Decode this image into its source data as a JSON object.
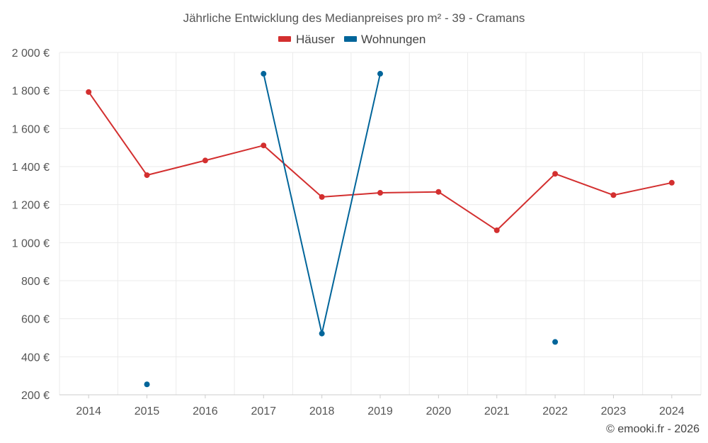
{
  "chart_data": {
    "type": "line",
    "title": "Jährliche Entwicklung des Medianpreises pro m² - 39 - Cramans",
    "categories": [
      "2014",
      "2015",
      "2016",
      "2017",
      "2018",
      "2019",
      "2020",
      "2021",
      "2022",
      "2023",
      "2024"
    ],
    "y_tick_labels": [
      "200 €",
      "400 €",
      "600 €",
      "800 €",
      "1 000 €",
      "1 200 €",
      "1 400 €",
      "1 600 €",
      "1 800 €",
      "2 000 €"
    ],
    "y_ticks": [
      200,
      400,
      600,
      800,
      1000,
      1200,
      1400,
      1600,
      1800,
      2000
    ],
    "ylim": [
      200,
      2000
    ],
    "grid": true,
    "legend_position": "top-center",
    "series": [
      {
        "name": "Häuser",
        "color": "#d32f2f",
        "values": [
          1792,
          1355,
          1432,
          1511,
          1240,
          1262,
          1267,
          1065,
          1362,
          1250,
          1315
        ]
      },
      {
        "name": "Wohnungen",
        "color": "#01659a",
        "values": [
          null,
          255,
          null,
          1888,
          522,
          1888,
          null,
          null,
          478,
          null,
          null
        ]
      }
    ],
    "copyright": "© emooki.fr - 2026"
  }
}
